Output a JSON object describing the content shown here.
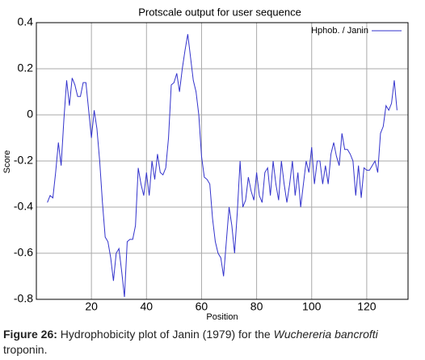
{
  "chart_data": {
    "type": "line",
    "title": "Protscale output for user sequence",
    "x_label": "Position",
    "y_label": "Score",
    "x": [
      4,
      5,
      6,
      7,
      8,
      9,
      10,
      11,
      12,
      13,
      14,
      15,
      16,
      17,
      18,
      19,
      20,
      21,
      22,
      23,
      24,
      25,
      26,
      27,
      28,
      29,
      30,
      31,
      32,
      33,
      34,
      35,
      36,
      37,
      38,
      39,
      40,
      41,
      42,
      43,
      44,
      45,
      46,
      47,
      48,
      49,
      50,
      51,
      52,
      53,
      54,
      55,
      56,
      57,
      58,
      59,
      60,
      61,
      62,
      63,
      64,
      65,
      66,
      67,
      68,
      69,
      70,
      71,
      72,
      73,
      74,
      75,
      76,
      77,
      78,
      79,
      80,
      81,
      82,
      83,
      84,
      85,
      86,
      87,
      88,
      89,
      90,
      91,
      92,
      93,
      94,
      95,
      96,
      97,
      98,
      99,
      100,
      101,
      102,
      103,
      104,
      105,
      106,
      107,
      108,
      109,
      110,
      111,
      112,
      113,
      114,
      115,
      116,
      117,
      118,
      119,
      120,
      121,
      122,
      123,
      124,
      125,
      126,
      127,
      128,
      129,
      130,
      131
    ],
    "series": [
      {
        "name": "Hphob. / Janin",
        "color": "#3333cc",
        "values": [
          -0.38,
          -0.35,
          -0.36,
          -0.25,
          -0.12,
          -0.22,
          -0.02,
          0.15,
          0.04,
          0.16,
          0.13,
          0.08,
          0.08,
          0.14,
          0.14,
          0.02,
          -0.1,
          0.02,
          -0.06,
          -0.2,
          -0.38,
          -0.53,
          -0.55,
          -0.62,
          -0.72,
          -0.6,
          -0.58,
          -0.68,
          -0.79,
          -0.55,
          -0.54,
          -0.54,
          -0.48,
          -0.23,
          -0.3,
          -0.35,
          -0.25,
          -0.35,
          -0.2,
          -0.28,
          -0.17,
          -0.25,
          -0.26,
          -0.23,
          -0.1,
          0.13,
          0.14,
          0.18,
          0.1,
          0.2,
          0.28,
          0.35,
          0.25,
          0.15,
          0.1,
          0.0,
          -0.18,
          -0.27,
          -0.28,
          -0.3,
          -0.45,
          -0.55,
          -0.6,
          -0.62,
          -0.7,
          -0.55,
          -0.4,
          -0.48,
          -0.6,
          -0.42,
          -0.2,
          -0.4,
          -0.37,
          -0.27,
          -0.33,
          -0.37,
          -0.25,
          -0.35,
          -0.38,
          -0.25,
          -0.23,
          -0.35,
          -0.2,
          -0.3,
          -0.37,
          -0.2,
          -0.3,
          -0.38,
          -0.3,
          -0.2,
          -0.35,
          -0.25,
          -0.4,
          -0.3,
          -0.2,
          -0.25,
          -0.14,
          -0.3,
          -0.2,
          -0.2,
          -0.3,
          -0.22,
          -0.3,
          -0.17,
          -0.12,
          -0.18,
          -0.22,
          -0.08,
          -0.15,
          -0.15,
          -0.17,
          -0.2,
          -0.35,
          -0.22,
          -0.36,
          -0.23,
          -0.24,
          -0.24,
          -0.22,
          -0.2,
          -0.25,
          -0.08,
          -0.05,
          0.04,
          0.02,
          0.05,
          0.15,
          0.02
        ]
      }
    ],
    "xlim": [
      0,
      135
    ],
    "xticks": [
      20,
      40,
      60,
      80,
      100,
      120
    ],
    "ylim": [
      -0.8,
      0.4
    ],
    "yticks": [
      -0.8,
      -0.6,
      -0.4,
      -0.2,
      0,
      0.2,
      0.4
    ],
    "grid": true,
    "legend": "top-right"
  },
  "caption": {
    "label": "Figure 26:",
    "text": "Hydrophobicity plot of Janin (1979) for the",
    "species": "Wuchereria bancrofti",
    "end": "troponin."
  }
}
